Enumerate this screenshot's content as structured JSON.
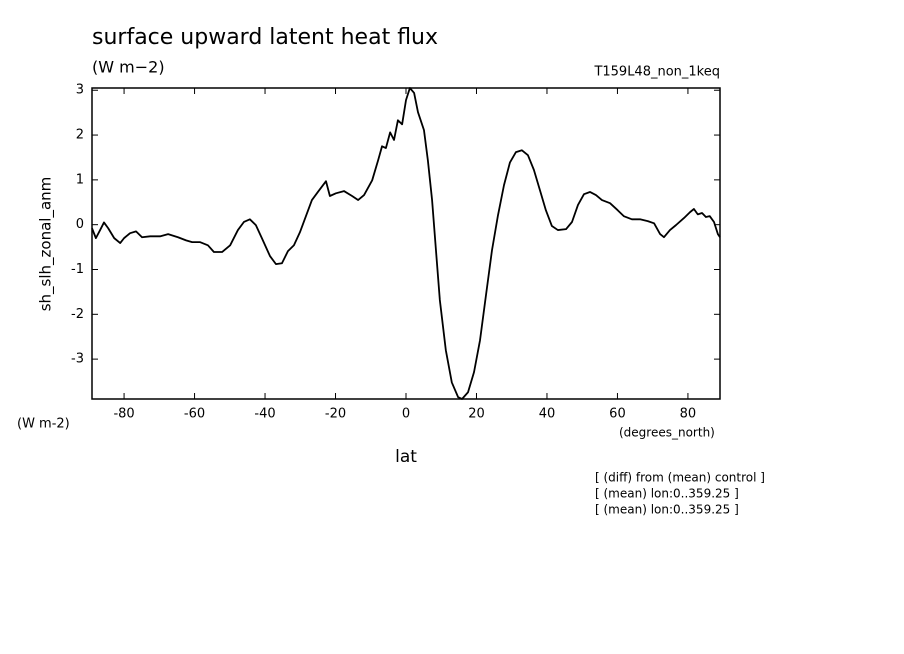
{
  "chart_data": {
    "type": "line",
    "title": "surface upward latent heat flux",
    "units": "(W m−2)",
    "run_label": "T159L48_non_1keq",
    "y_label": "sh_slh_zonal_anm",
    "y_units": "(W m-2)",
    "x_units": "(degrees_north)",
    "x_label": "lat",
    "annotations": [
      "[ (diff) from (mean) control ]",
      "[ (mean) lon:0..359.25 ]",
      "[ (mean) lon:0..359.25 ]"
    ],
    "color": "#000000",
    "xlim": [
      -89.1,
      89.1
    ],
    "ylim": [
      -3.89,
      3.05
    ],
    "xticks": [
      -80,
      -60,
      -40,
      -20,
      0,
      20,
      40,
      60,
      80
    ],
    "yticks": [
      -3,
      -2,
      -1,
      0,
      1,
      2,
      3
    ],
    "x": [
      -89.1,
      -88,
      -86.8,
      -85.7,
      -84.5,
      -82.8,
      -81.1,
      -80,
      -78.3,
      -76.6,
      -74.9,
      -72.6,
      -69.8,
      -67.5,
      -64.7,
      -62.4,
      -60.7,
      -58.4,
      -56.2,
      -54.5,
      -52.2,
      -49.9,
      -47.7,
      -46,
      -44.3,
      -42.6,
      -40.9,
      -38.6,
      -36.9,
      -35.2,
      -33.5,
      -31.8,
      -30.1,
      -28.4,
      -26.7,
      -25,
      -22.7,
      -21.6,
      -19.9,
      -17.6,
      -15.3,
      -13.6,
      -11.9,
      -9.6,
      -7.9,
      -6.8,
      -5.7,
      -4.5,
      -3.4,
      -2.3,
      -1.1,
      0,
      1.1,
      2.3,
      3.4,
      5.1,
      6.2,
      7.4,
      8.5,
      9.6,
      11.3,
      13,
      14.8,
      15.9,
      17.6,
      19.3,
      21,
      22.7,
      24.4,
      26.1,
      27.8,
      29.5,
      31.2,
      32.9,
      34.6,
      36.3,
      38,
      39.7,
      41.4,
      43.1,
      45.4,
      47.1,
      48.8,
      50.5,
      52.2,
      53.9,
      55.6,
      57.9,
      60.1,
      61.8,
      64.1,
      66.4,
      68.6,
      70.4,
      72.1,
      73.2,
      74.9,
      76.6,
      78.9,
      80.6,
      81.7,
      82.8,
      84,
      85.1,
      86.2,
      87.4,
      88.5,
      89.1
    ],
    "values": [
      -0.08,
      -0.3,
      -0.12,
      0.05,
      -0.08,
      -0.3,
      -0.41,
      -0.3,
      -0.19,
      -0.15,
      -0.28,
      -0.26,
      -0.26,
      -0.21,
      -0.28,
      -0.35,
      -0.39,
      -0.39,
      -0.46,
      -0.61,
      -0.61,
      -0.46,
      -0.12,
      0.06,
      0.12,
      -0.01,
      -0.3,
      -0.7,
      -0.88,
      -0.86,
      -0.59,
      -0.46,
      -0.17,
      0.19,
      0.55,
      0.73,
      0.97,
      0.64,
      0.7,
      0.75,
      0.64,
      0.55,
      0.66,
      0.99,
      1.44,
      1.75,
      1.71,
      2.06,
      1.89,
      2.33,
      2.24,
      2.78,
      3.05,
      2.94,
      2.51,
      2.11,
      1.44,
      0.55,
      -0.57,
      -1.68,
      -2.8,
      -3.52,
      -3.85,
      -3.89,
      -3.74,
      -3.29,
      -2.58,
      -1.57,
      -0.57,
      0.21,
      0.88,
      1.39,
      1.62,
      1.66,
      1.55,
      1.22,
      0.77,
      0.32,
      -0.03,
      -0.12,
      -0.1,
      0.06,
      0.44,
      0.68,
      0.73,
      0.66,
      0.55,
      0.48,
      0.32,
      0.19,
      0.12,
      0.12,
      0.08,
      0.03,
      -0.21,
      -0.28,
      -0.12,
      -0.01,
      0.15,
      0.28,
      0.35,
      0.23,
      0.26,
      0.17,
      0.19,
      0.06,
      -0.21,
      -0.28
    ]
  }
}
